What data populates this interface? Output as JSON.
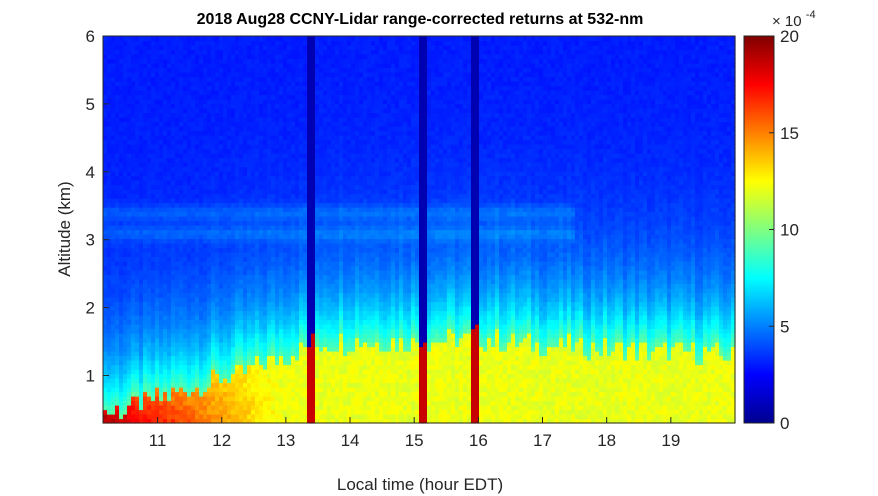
{
  "chart_data": {
    "type": "heatmap",
    "title": "2018 Aug28 CCNY-Lidar range-corrected returns at 532-nm",
    "xlabel": "Local time (hour EDT)",
    "ylabel": "Altitude (km)",
    "xlim": [
      10.15,
      20.0
    ],
    "ylim": [
      0.3,
      6.0
    ],
    "xticks": [
      "11",
      "12",
      "13",
      "14",
      "15",
      "16",
      "17",
      "18",
      "19"
    ],
    "yticks": [
      "1",
      "2",
      "3",
      "4",
      "5",
      "6"
    ],
    "colorbar": {
      "range": [
        0,
        20
      ],
      "ticks": [
        "0",
        "5",
        "10",
        "15",
        "20"
      ],
      "multiplier_base": "× 10",
      "multiplier_exponent": "-4",
      "colormap": "jet"
    },
    "boundary_layer_height_km": [
      {
        "time": 10.2,
        "height": 0.45
      },
      {
        "time": 10.6,
        "height": 0.55
      },
      {
        "time": 11.0,
        "height": 0.65
      },
      {
        "time": 11.5,
        "height": 0.8
      },
      {
        "time": 12.0,
        "height": 0.95
      },
      {
        "time": 12.5,
        "height": 1.1
      },
      {
        "time": 13.0,
        "height": 1.3
      },
      {
        "time": 13.5,
        "height": 1.45
      },
      {
        "time": 14.0,
        "height": 1.5
      },
      {
        "time": 15.0,
        "height": 1.5
      },
      {
        "time": 16.0,
        "height": 1.55
      },
      {
        "time": 17.0,
        "height": 1.45
      },
      {
        "time": 18.0,
        "height": 1.4
      },
      {
        "time": 19.0,
        "height": 1.35
      },
      {
        "time": 20.0,
        "height": 1.3
      }
    ],
    "aerosol_layers_km": [
      {
        "height": 3.1
      },
      {
        "height": 3.4
      }
    ],
    "cloud_events_hour": [
      13.4,
      15.15,
      15.95
    ]
  }
}
